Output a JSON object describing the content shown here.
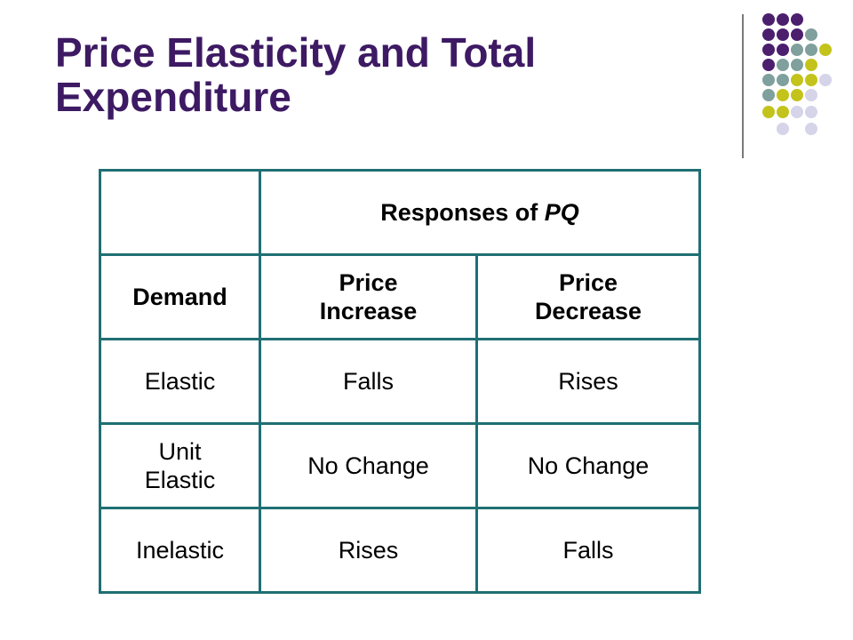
{
  "slide": {
    "title_line1": "Price Elasticity and Total",
    "title_line2": "Expenditure"
  },
  "decoration": {
    "dot_colors": {
      "purple": "#4b1f6e",
      "teal": "#7fa09c",
      "olive": "#c3c31c",
      "lavender": "#d5d4e8"
    }
  },
  "table": {
    "group_header": "Responses of ",
    "group_header_var": "PQ",
    "columns": {
      "demand": "Demand",
      "increase_line1": "Price",
      "increase_line2": "Increase",
      "decrease_line1": "Price",
      "decrease_line2": "Decrease"
    },
    "rows": [
      {
        "demand_line1": "Elastic",
        "demand_line2": "",
        "increase": "Falls",
        "decrease": "Rises"
      },
      {
        "demand_line1": "Unit",
        "demand_line2": "Elastic",
        "increase": "No Change",
        "decrease": "No Change"
      },
      {
        "demand_line1": "Inelastic",
        "demand_line2": "",
        "increase": "Rises",
        "decrease": "Falls"
      }
    ]
  }
}
